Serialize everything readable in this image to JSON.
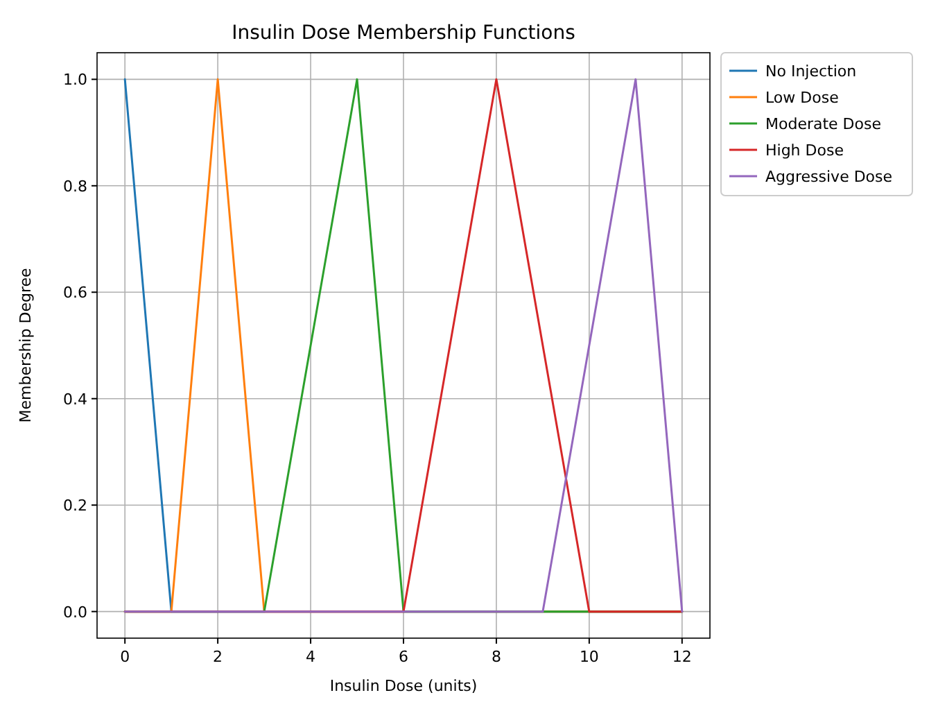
{
  "chart_data": {
    "type": "line",
    "title": "Insulin Dose Membership Functions",
    "xlabel": "Insulin Dose (units)",
    "ylabel": "Membership Degree",
    "xlim": [
      -0.6,
      12.6
    ],
    "ylim": [
      -0.05,
      1.05
    ],
    "xticks": [
      0,
      2,
      4,
      6,
      8,
      10,
      12
    ],
    "yticks": [
      {
        "value": 0,
        "label": "0.0"
      },
      {
        "value": 0.2,
        "label": "0.2"
      },
      {
        "value": 0.4,
        "label": "0.4"
      },
      {
        "value": 0.6,
        "label": "0.6"
      },
      {
        "value": 0.8,
        "label": "0.8"
      },
      {
        "value": 1,
        "label": "1.0"
      }
    ],
    "grid": true,
    "legend": "top right",
    "series": [
      {
        "name": "No Injection",
        "color": "#1f77b4",
        "x": [
          0,
          1,
          12
        ],
        "values": [
          1,
          0,
          0
        ]
      },
      {
        "name": "Low Dose",
        "color": "#ff7f0e",
        "x": [
          0,
          1,
          2,
          3,
          12
        ],
        "values": [
          0,
          0,
          1,
          0,
          0
        ]
      },
      {
        "name": "Moderate Dose",
        "color": "#2ca02c",
        "x": [
          0,
          3,
          5,
          6,
          12
        ],
        "values": [
          0,
          0,
          1,
          0,
          0
        ]
      },
      {
        "name": "High Dose",
        "color": "#d62728",
        "x": [
          0,
          6,
          8,
          10,
          12
        ],
        "values": [
          0,
          0,
          1,
          0,
          0
        ]
      },
      {
        "name": "Aggressive Dose",
        "color": "#9467bd",
        "x": [
          0,
          9,
          11,
          12
        ],
        "values": [
          0,
          0,
          1,
          0
        ]
      }
    ]
  }
}
